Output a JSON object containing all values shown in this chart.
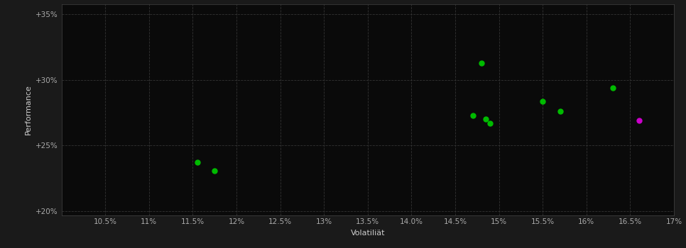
{
  "background_color": "#1a1a1a",
  "plot_bg_color": "#0a0a0a",
  "grid_color": "#333333",
  "grid_style": "--",
  "xlabel": "Volatiliät",
  "ylabel": "Performance",
  "xlim": [
    0.1,
    0.17
  ],
  "ylim": [
    0.197,
    0.358
  ],
  "xticks": [
    0.105,
    0.11,
    0.115,
    0.12,
    0.125,
    0.13,
    0.135,
    0.14,
    0.145,
    0.15,
    0.155,
    0.16,
    0.165,
    0.17
  ],
  "yticks": [
    0.2,
    0.25,
    0.3,
    0.35
  ],
  "green_points": [
    [
      0.1155,
      0.237
    ],
    [
      0.1175,
      0.231
    ],
    [
      0.147,
      0.273
    ],
    [
      0.1485,
      0.27
    ],
    [
      0.149,
      0.267
    ],
    [
      0.148,
      0.313
    ],
    [
      0.155,
      0.284
    ],
    [
      0.157,
      0.276
    ],
    [
      0.163,
      0.294
    ]
  ],
  "magenta_points": [
    [
      0.166,
      0.269
    ]
  ],
  "green_color": "#00bb00",
  "magenta_color": "#cc00cc",
  "point_size": 25,
  "text_color": "#cccccc",
  "tick_color": "#aaaaaa",
  "label_fontsize": 8,
  "tick_fontsize": 7.5,
  "spine_color": "#444444"
}
